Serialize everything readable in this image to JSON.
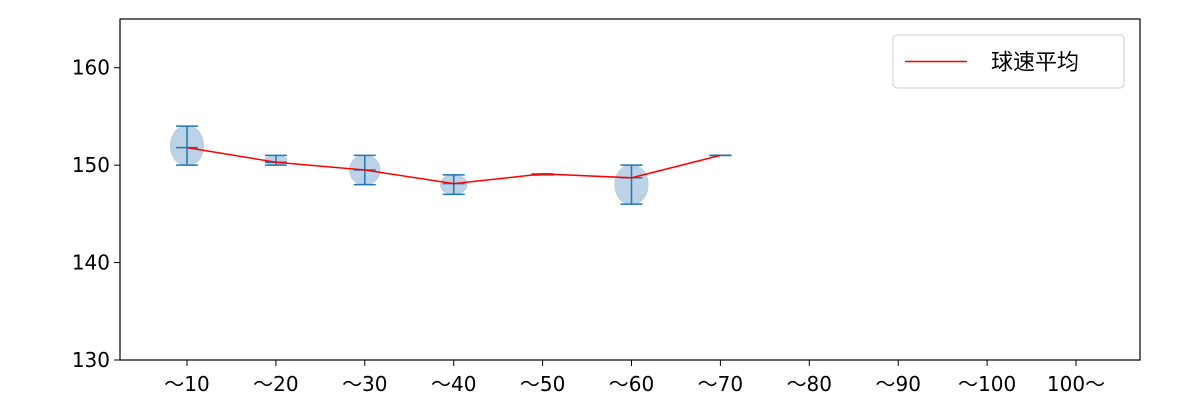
{
  "chart_data": {
    "type": "violin",
    "categories": [
      "～10",
      "～20",
      "～30",
      "～40",
      "～50",
      "～60",
      "～70",
      "～80",
      "～90",
      "～100",
      "100～"
    ],
    "yticks": [
      130,
      140,
      150,
      160
    ],
    "ylim": [
      130,
      165
    ],
    "grid": false,
    "legend": {
      "position": "top-right",
      "entries": [
        "球速平均"
      ]
    },
    "series": [
      {
        "name": "球速平均",
        "type": "line",
        "color": "#ff0000",
        "values": [
          151.8,
          150.3,
          149.5,
          148.1,
          149.1,
          148.7,
          151.0,
          null,
          null,
          null,
          null
        ]
      }
    ],
    "distributions": [
      {
        "category": "～10",
        "min": 150,
        "max": 154,
        "mean": 151.8
      },
      {
        "category": "～20",
        "min": 150,
        "max": 151,
        "mean": 150.3
      },
      {
        "category": "～30",
        "min": 148,
        "max": 151,
        "mean": 149.5
      },
      {
        "category": "～40",
        "min": 147,
        "max": 149,
        "mean": 148.1
      },
      {
        "category": "～50",
        "min": 149,
        "max": 149,
        "mean": 149.1
      },
      {
        "category": "～60",
        "min": 146,
        "max": 150,
        "mean": 148.7
      },
      {
        "category": "～70",
        "min": 151,
        "max": 151,
        "mean": 151.0
      }
    ],
    "violin_color": "#b5cde3",
    "whisker_color": "#1f77b4"
  }
}
